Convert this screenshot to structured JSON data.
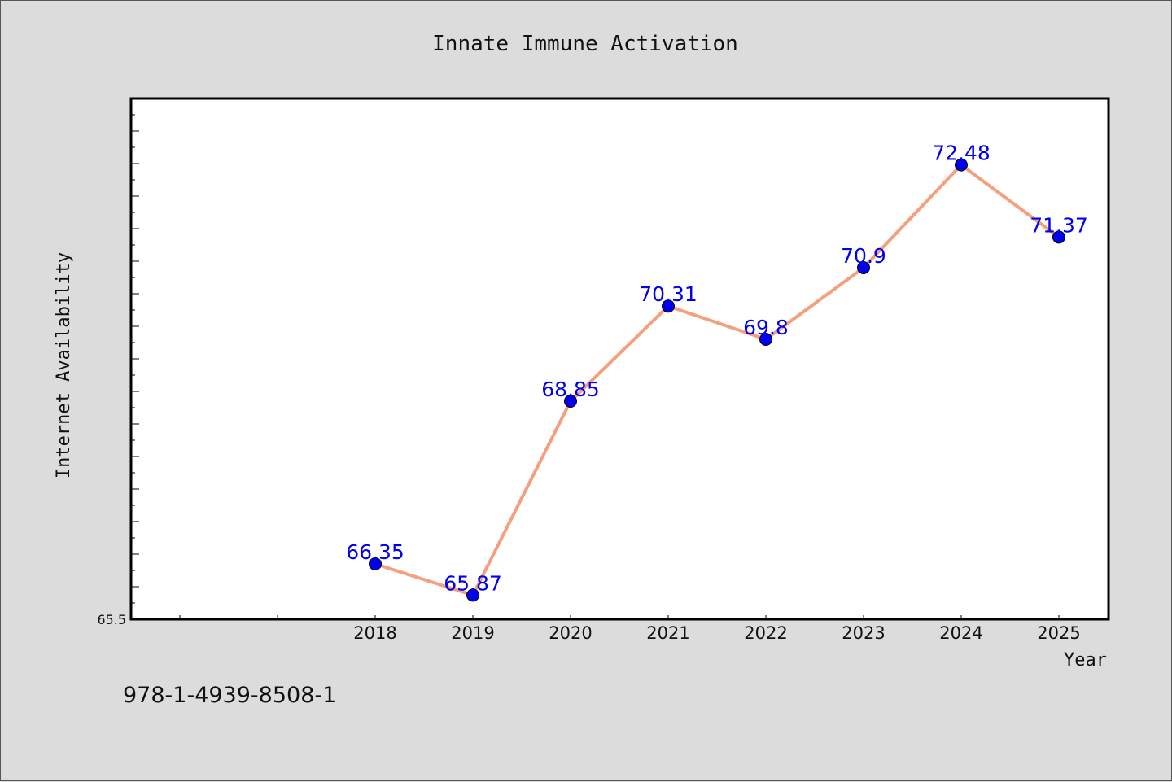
{
  "chart_data": {
    "type": "line",
    "title": "Innate Immune Activation",
    "xlabel": "Year",
    "ylabel": "Internet Availability",
    "categories": [
      "2018",
      "2019",
      "2020",
      "2021",
      "2022",
      "2023",
      "2024",
      "2025"
    ],
    "series": [
      {
        "values": [
          66.35,
          65.87,
          68.85,
          70.31,
          69.8,
          70.9,
          72.48,
          71.37
        ],
        "labels": [
          "66.35",
          "65.87",
          "68.85",
          "70.31",
          "69.8",
          "70.9",
          "72.48",
          "71.37"
        ]
      }
    ],
    "y_tick_labels": [
      "65.5"
    ],
    "ylim": [
      65.5,
      73.5
    ],
    "grid": false,
    "line_color": "#f4a07f",
    "marker_color": "#0000ee",
    "label_color": "#0000ee"
  },
  "footer": {
    "isbn": "978-1-4939-8508-1"
  }
}
